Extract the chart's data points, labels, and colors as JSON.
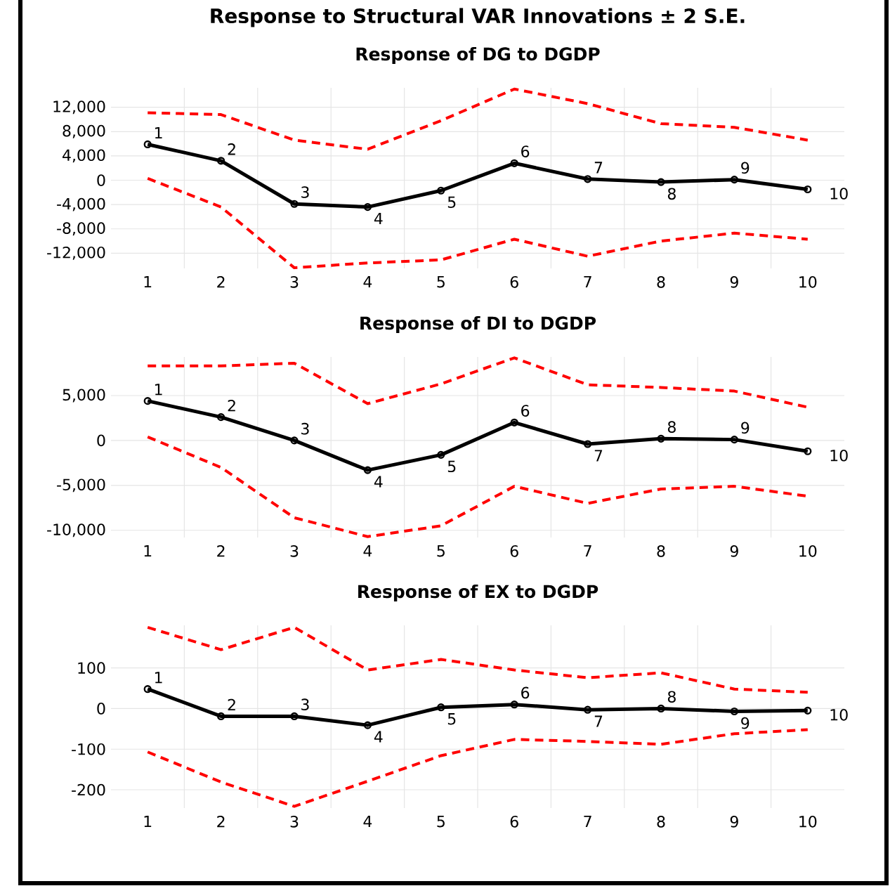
{
  "chart_data": [
    {
      "type": "line",
      "title": "Response to Structural VAR Innovations ± 2 S.E.",
      "subtitle": "Response of DG to DGDP",
      "categories": [
        "1",
        "2",
        "3",
        "4",
        "5",
        "6",
        "7",
        "8",
        "9",
        "10"
      ],
      "ylim": [
        -14500,
        15200
      ],
      "yticks": [
        {
          "value": -12000,
          "label": "-12,000"
        },
        {
          "value": -8000,
          "label": "-8,000"
        },
        {
          "value": -4000,
          "label": "-4,000"
        },
        0,
        {
          "value": 4000,
          "label": "4,000"
        },
        {
          "value": 8000,
          "label": "8,000"
        },
        {
          "value": 12000,
          "label": "12,000"
        }
      ],
      "grid": true,
      "series": [
        {
          "color": "#000000",
          "marker": "circle",
          "line_style": "solid",
          "values": [
            5900,
            3200,
            -3900,
            -4400,
            -1700,
            2800,
            200,
            -300,
            100,
            -1500
          ]
        },
        {
          "color": "#ff0000",
          "marker": "none",
          "line_style": "dashed",
          "values": [
            11100,
            10800,
            6600,
            5100,
            9800,
            15000,
            12600,
            9300,
            8700,
            6600
          ]
        },
        {
          "color": "#ff0000",
          "marker": "none",
          "line_style": "dashed",
          "values": [
            300,
            -4400,
            -14400,
            -13600,
            -13100,
            -9700,
            -12500,
            -10000,
            -8700,
            -9700
          ]
        }
      ],
      "annotations": [
        {
          "text": "1",
          "x": "1",
          "y": 5900
        },
        {
          "text": "2",
          "x": "2",
          "y": 3200
        },
        {
          "text": "3",
          "x": "3",
          "y": -3900
        },
        {
          "text": "4",
          "x": "4",
          "y": -4400
        },
        {
          "text": "5",
          "x": "5",
          "y": -1700
        },
        {
          "text": "6",
          "x": "6",
          "y": 2800
        },
        {
          "text": "7",
          "x": "7",
          "y": 200
        },
        {
          "text": "8",
          "x": "8",
          "y": -300
        },
        {
          "text": "9",
          "x": "9",
          "y": 100
        },
        {
          "text": "10",
          "x": "10",
          "y": -1500
        }
      ]
    },
    {
      "type": "line",
      "title": "Response of DI to DGDP",
      "categories": [
        "1",
        "2",
        "3",
        "4",
        "5",
        "6",
        "7",
        "8",
        "9",
        "10"
      ],
      "ylim": [
        -10800,
        9300
      ],
      "yticks": [
        {
          "value": -10000,
          "label": "-10,000"
        },
        {
          "value": -5000,
          "label": "-5,000"
        },
        0,
        {
          "value": 5000,
          "label": "5,000"
        }
      ],
      "grid": true,
      "series": [
        {
          "color": "#000000",
          "marker": "circle",
          "line_style": "solid",
          "values": [
            4400,
            2600,
            0,
            -3300,
            -1600,
            2000,
            -400,
            200,
            100,
            -1200
          ]
        },
        {
          "color": "#ff0000",
          "marker": "none",
          "line_style": "dashed",
          "values": [
            8300,
            8300,
            8600,
            4100,
            6300,
            9200,
            6200,
            5900,
            5500,
            3700
          ]
        },
        {
          "color": "#ff0000",
          "marker": "none",
          "line_style": "dashed",
          "values": [
            400,
            -3000,
            -8600,
            -10700,
            -9500,
            -5100,
            -7000,
            -5400,
            -5100,
            -6200
          ]
        }
      ],
      "annotations": [
        {
          "text": "1",
          "x": "1",
          "y": 4400
        },
        {
          "text": "2",
          "x": "2",
          "y": 2600
        },
        {
          "text": "3",
          "x": "3",
          "y": 0
        },
        {
          "text": "4",
          "x": "4",
          "y": -3300
        },
        {
          "text": "5",
          "x": "5",
          "y": -1600
        },
        {
          "text": "6",
          "x": "6",
          "y": 2000
        },
        {
          "text": "7",
          "x": "7",
          "y": -400
        },
        {
          "text": "8",
          "x": "8",
          "y": 200
        },
        {
          "text": "9",
          "x": "9",
          "y": 100
        },
        {
          "text": "10",
          "x": "10",
          "y": -1200
        }
      ]
    },
    {
      "type": "line",
      "title": "Response of EX to DGDP",
      "categories": [
        "1",
        "2",
        "3",
        "4",
        "5",
        "6",
        "7",
        "8",
        "9",
        "10"
      ],
      "ylim": [
        -245,
        205
      ],
      "yticks": [
        -200,
        -100,
        0,
        100
      ],
      "grid": true,
      "series": [
        {
          "color": "#000000",
          "marker": "circle",
          "line_style": "solid",
          "values": [
            48,
            -19,
            -19,
            -41,
            3,
            10,
            -3,
            0,
            -7,
            -5
          ]
        },
        {
          "color": "#ff0000",
          "marker": "none",
          "line_style": "dashed",
          "values": [
            200,
            145,
            200,
            95,
            121,
            95,
            76,
            88,
            48,
            40
          ]
        },
        {
          "color": "#ff0000",
          "marker": "none",
          "line_style": "dashed",
          "values": [
            -107,
            -181,
            -241,
            -179,
            -116,
            -76,
            -81,
            -88,
            -62,
            -52
          ]
        }
      ],
      "annotations": [
        {
          "text": "1",
          "x": "1",
          "y": 48
        },
        {
          "text": "2",
          "x": "2",
          "y": -19
        },
        {
          "text": "3",
          "x": "3",
          "y": -19
        },
        {
          "text": "4",
          "x": "4",
          "y": -41
        },
        {
          "text": "5",
          "x": "5",
          "y": 3
        },
        {
          "text": "6",
          "x": "6",
          "y": 10
        },
        {
          "text": "7",
          "x": "7",
          "y": -3
        },
        {
          "text": "8",
          "x": "8",
          "y": 0
        },
        {
          "text": "9",
          "x": "9",
          "y": -7
        },
        {
          "text": "10",
          "x": "10",
          "y": -5
        }
      ]
    }
  ]
}
